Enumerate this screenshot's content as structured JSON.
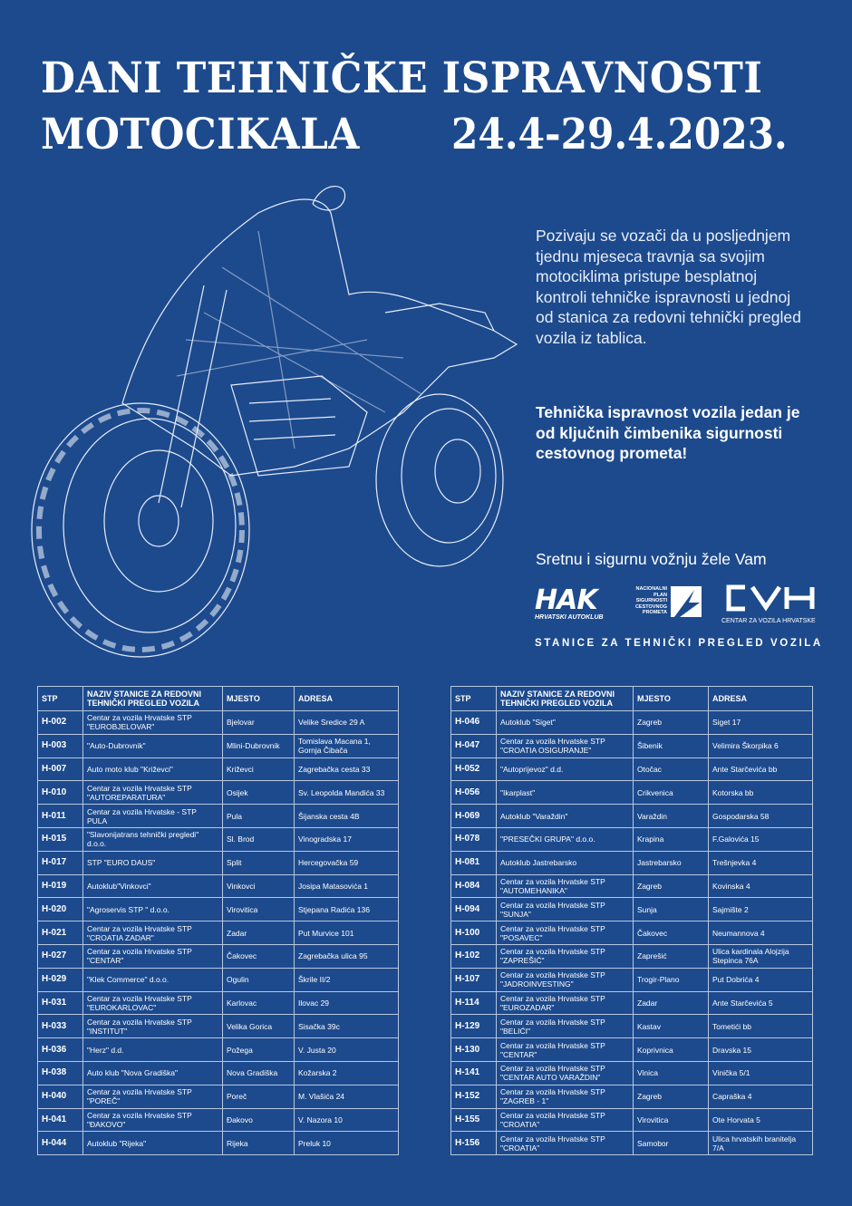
{
  "title": {
    "line1": "DANI TEHNIČKE ISPRAVNOSTI",
    "line2": "MOTOCIKALA",
    "dates": "24.4-29.4.2023."
  },
  "intro": "Pozivaju se vozači da u posljednjem tjednu mjeseca travnja sa svojim motociklima pristupe besplatnoj kontroli tehničke ispravnosti u jednoj od stanica za redovni tehnički pregled vozila iz tablica.",
  "slogan": "Tehnička ispravnost vozila jedan je od ključnih čimbenika sigurnosti cestovnog prometa!",
  "wish": "Sretnu i sigurnu vožnju žele Vam",
  "logos": {
    "hak": "HAK",
    "hak_sub": "HRVATSKI AUTOKLUB",
    "npl": "NACIONALNI PLAN SIGURNOSTI CESTOVNOG PROMETA",
    "cvh": "CVH",
    "cvh_sub": "CENTAR ZA VOZILA HRVATSKE"
  },
  "stanice": "STANICE ZA TEHNIČKI PREGLED VOZILA",
  "colors": {
    "background": "#1d4a8d",
    "text": "#ffffff"
  },
  "table_headers": [
    "STP",
    "NAZIV STANICE ZA REDOVNI TEHNIČKI PREGLED VOZILA",
    "MJESTO",
    "ADRESA"
  ],
  "left_table": [
    [
      "H-002",
      "Centar za vozila Hrvatske STP \"EUROBJELOVAR\"",
      "Bjelovar",
      "Velike Sredice 29 A"
    ],
    [
      "H-003",
      "\"Auto-Dubrovnik\"",
      "Mlini-Dubrovnik",
      "Tomislava Macana 1, Gornja Čibača"
    ],
    [
      "H-007",
      "Auto moto klub \"Križevci\"",
      "Križevci",
      "Zagrebačka cesta 33"
    ],
    [
      "H-010",
      "Centar za vozila Hrvatske STP \"AUTOREPARATURA\"",
      "Osijek",
      "Sv. Leopolda Mandića 33"
    ],
    [
      "H-011",
      "Centar za vozila Hrvatske - STP PULA",
      "Pula",
      "Šijanska cesta 4B"
    ],
    [
      "H-015",
      "\"Slavonijatrans tehnički pregledi\" d.o.o.",
      "Sl. Brod",
      "Vinogradska 17"
    ],
    [
      "H-017",
      "STP \"EURO DAUS\"",
      "Split",
      "Hercegovačka 59"
    ],
    [
      "H-019",
      "Autoklub\"Vinkovci\"",
      "Vinkovci",
      "Josipa Matasovića 1"
    ],
    [
      "H-020",
      "\"Agroservis STP \" d.o.o.",
      "Virovitica",
      "Stjepana Radića 136"
    ],
    [
      "H-021",
      "Centar za vozila Hrvatske STP \"CROATIA ZADAR\"",
      "Zadar",
      "Put Murvice 101"
    ],
    [
      "H-027",
      "Centar za vozila Hrvatske STP \"CENTAR\"",
      "Čakovec",
      "Zagrebačka ulica 95"
    ],
    [
      "H-029",
      "\"Klek Commerce\" d.o.o.",
      "Ogulin",
      "Škrile II/2"
    ],
    [
      "H-031",
      "Centar za vozila Hrvatske STP \"EUROKARLOVAC\"",
      "Karlovac",
      "Ilovac 29"
    ],
    [
      "H-033",
      "Centar za vozila Hrvatske STP \"INSTITUT\"",
      "Velika Gorica",
      "Sisačka 39c"
    ],
    [
      "H-036",
      "\"Herz\" d.d.",
      "Požega",
      "V. Justa 20"
    ],
    [
      "H-038",
      "Auto klub \"Nova Gradiška\"",
      "Nova Gradiška",
      "Kožarska 2"
    ],
    [
      "H-040",
      "Centar za vozila Hrvatske STP \"POREČ\"",
      "Poreč",
      "M. Vlašića 24"
    ],
    [
      "H-041",
      "Centar za vozila Hrvatske STP \"ĐAKOVO\"",
      "Đakovo",
      "V. Nazora 10"
    ],
    [
      "H-044",
      "Autoklub \"Rijeka\"",
      "Rijeka",
      "Preluk 10"
    ]
  ],
  "right_table": [
    [
      "H-046",
      "Autoklub \"Siget\"",
      "Zagreb",
      "Siget 17"
    ],
    [
      "H-047",
      "Centar za vozila Hrvatske STP \"CROATIA OSIGURANJE\"",
      "Šibenik",
      "Velimira Škorpika 6"
    ],
    [
      "H-052",
      "\"Autoprijevoz\" d.d.",
      "Otočac",
      "Ante Starčevića bb"
    ],
    [
      "H-056",
      "\"Ikarplast\"",
      "Crikvenica",
      "Kotorska bb"
    ],
    [
      "H-069",
      "Autoklub \"Varaždin\"",
      "Varaždin",
      "Gospodarska 58"
    ],
    [
      "H-078",
      "\"PRESEČKI GRUPA\" d.o.o.",
      "Krapina",
      "F.Galovića 15"
    ],
    [
      "H-081",
      "Autoklub  Jastrebarsko",
      "Jastrebarsko",
      "Trešnjevka 4"
    ],
    [
      "H-084",
      "Centar za vozila Hrvatske STP \"AUTOMEHANIKA\"",
      "Zagreb",
      "Kovinska 4"
    ],
    [
      "H-094",
      "Centar za vozila Hrvatske STP  \"SUNJA\"",
      "Sunja",
      "Sajmište 2"
    ],
    [
      "H-100",
      "Centar za vozila Hrvatske STP \"POSAVEC\"",
      "Čakovec",
      "Neumannova 4"
    ],
    [
      "H-102",
      "Centar za vozila Hrvatske STP \"ZAPREŠIĆ\"",
      "Zaprešić",
      "Ulica kardinala Alojzija Stepinca    76A"
    ],
    [
      "H-107",
      "Centar za vozila Hrvatske STP \"JADROINVESTING\"",
      "Trogir-Plano",
      "Put Dobrića 4"
    ],
    [
      "H-114",
      "Centar za vozila Hrvatske STP \"EUROZADAR\"",
      "Zadar",
      "Ante Starčevića 5"
    ],
    [
      "H-129",
      "Centar za vozila Hrvatske STP \"BELIĆI\"",
      "Kastav",
      "Tometići bb"
    ],
    [
      "H-130",
      "Centar za vozila Hrvatske STP \"CENTAR\"",
      "Koprivnica",
      "Dravska 15"
    ],
    [
      "H-141",
      "Centar za vozila Hrvatske STP \"CENTAR AUTO VARAŽDIN\"",
      "Vinica",
      "Vinička 5/1"
    ],
    [
      "H-152",
      "Centar za vozila Hrvatske STP \"ZAGREB - 1\"",
      "Zagreb",
      "Capraška 4"
    ],
    [
      "H-155",
      "Centar za vozila Hrvatske STP \"CROATIA\"",
      "Virovitica",
      "Ote Horvata 5"
    ],
    [
      "H-156",
      "Centar za vozila Hrvatske STP \"CROATIA\"",
      "Samobor",
      "Ulica hrvatskih branitelja 7/A"
    ]
  ]
}
